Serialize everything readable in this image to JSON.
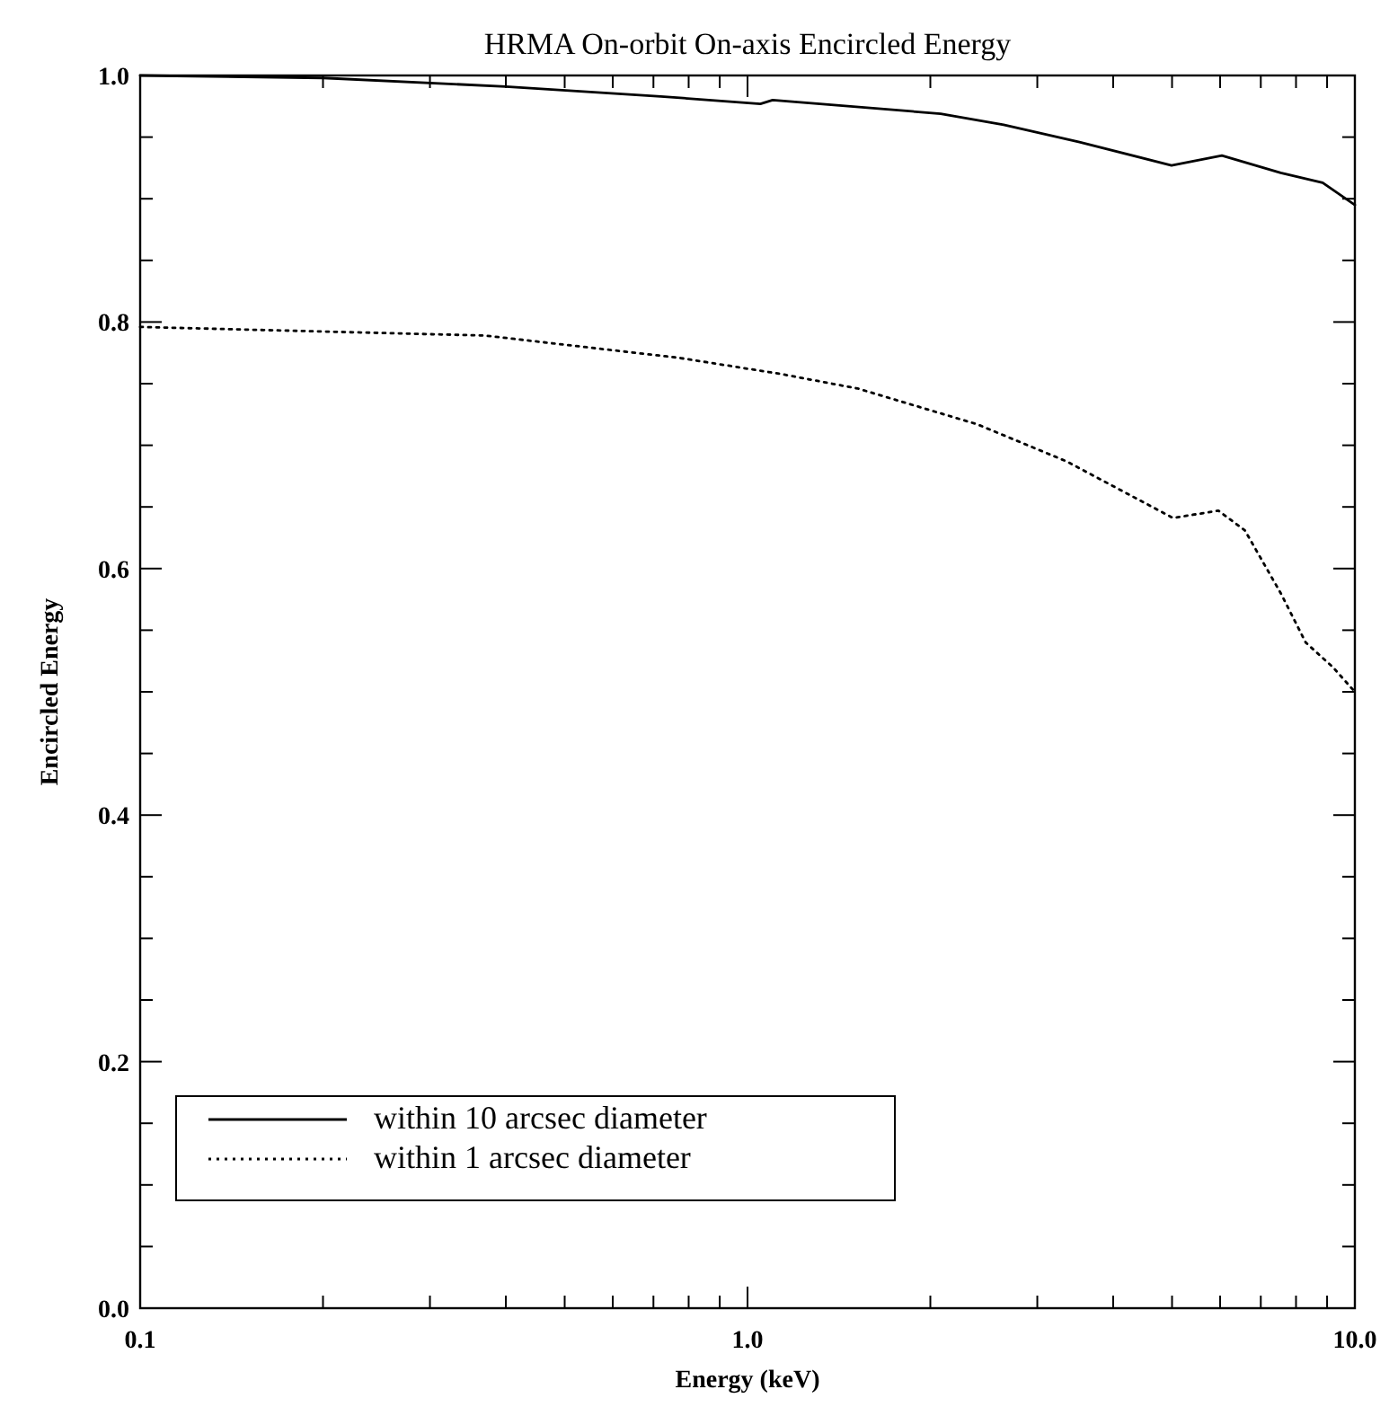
{
  "chart_data": {
    "type": "line",
    "title": "HRMA On-orbit On-axis Encircled Energy",
    "xlabel": "Energy (keV)",
    "ylabel": "Encircled Energy",
    "log": "x",
    "xlim": [
      0.1,
      10
    ],
    "ylim": [
      0,
      1
    ],
    "xticks": [
      {
        "value": 0.1,
        "label": "0.1"
      },
      {
        "value": 0.2,
        "label": null
      },
      {
        "value": 0.3,
        "label": null
      },
      {
        "value": 0.4,
        "label": null
      },
      {
        "value": 0.5,
        "label": null
      },
      {
        "value": 0.6,
        "label": null
      },
      {
        "value": 0.7,
        "label": null
      },
      {
        "value": 0.8,
        "label": null
      },
      {
        "value": 0.9,
        "label": null
      },
      {
        "value": 1,
        "label": "1.0"
      },
      {
        "value": 2,
        "label": null
      },
      {
        "value": 3,
        "label": null
      },
      {
        "value": 4,
        "label": null
      },
      {
        "value": 5,
        "label": null
      },
      {
        "value": 6,
        "label": null
      },
      {
        "value": 7,
        "label": null
      },
      {
        "value": 8,
        "label": null
      },
      {
        "value": 9,
        "label": null
      },
      {
        "value": 10,
        "label": "10.0"
      }
    ],
    "yticks": [
      {
        "value": 0,
        "label": "0.0"
      },
      {
        "value": 0.05,
        "label": null
      },
      {
        "value": 0.1,
        "label": null
      },
      {
        "value": 0.15,
        "label": null
      },
      {
        "value": 0.2,
        "label": "0.2"
      },
      {
        "value": 0.25,
        "label": null
      },
      {
        "value": 0.3,
        "label": null
      },
      {
        "value": 0.35,
        "label": null
      },
      {
        "value": 0.4,
        "label": "0.4"
      },
      {
        "value": 0.45,
        "label": null
      },
      {
        "value": 0.5,
        "label": null
      },
      {
        "value": 0.55,
        "label": null
      },
      {
        "value": 0.6,
        "label": "0.6"
      },
      {
        "value": 0.65,
        "label": null
      },
      {
        "value": 0.7,
        "label": null
      },
      {
        "value": 0.75,
        "label": null
      },
      {
        "value": 0.8,
        "label": "0.8"
      },
      {
        "value": 0.85,
        "label": null
      },
      {
        "value": 0.9,
        "label": null
      },
      {
        "value": 0.95,
        "label": null
      },
      {
        "value": 1,
        "label": "1.0"
      }
    ],
    "grid": false,
    "legend": "bottom left",
    "series": [
      {
        "name": "within 10 arcsec diameter",
        "color": "#000000",
        "line_style": "solid",
        "x": [
          0.1,
          0.2,
          0.4,
          0.72,
          1.05,
          1.1,
          2.08,
          2.64,
          3.52,
          4.99,
          6.04,
          7.55,
          8.85,
          10
        ],
        "values": [
          1.0,
          0.998,
          0.991,
          0.983,
          0.977,
          0.98,
          0.969,
          0.96,
          0.946,
          0.927,
          0.935,
          0.921,
          0.913,
          0.895
        ]
      },
      {
        "name": "within 1 arcsec diameter",
        "color": "#000000",
        "line_style": "dotted",
        "x": [
          0.1,
          0.37,
          0.77,
          1.13,
          1.52,
          2.39,
          3.35,
          5.02,
          5.96,
          6.59,
          7.55,
          8.3,
          9.2,
          10
        ],
        "values": [
          0.796,
          0.789,
          0.771,
          0.758,
          0.746,
          0.717,
          0.687,
          0.641,
          0.647,
          0.631,
          0.58,
          0.54,
          0.52,
          0.5
        ]
      }
    ]
  }
}
